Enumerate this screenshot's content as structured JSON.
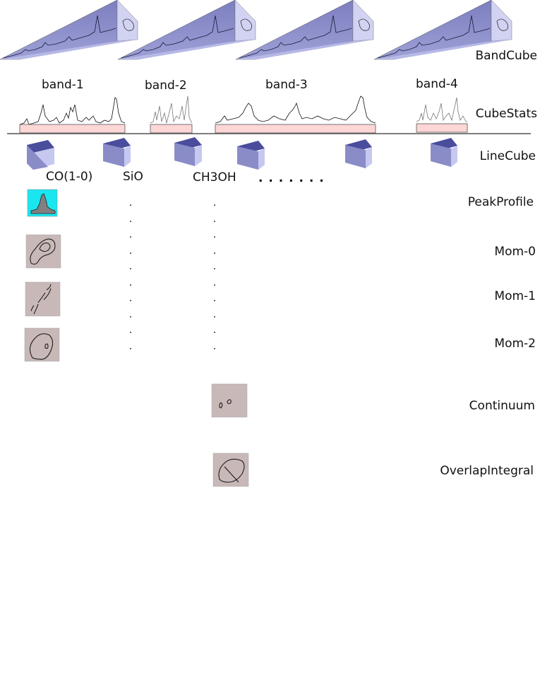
{
  "rows": {
    "bandcube": "BandCube",
    "cubestats": "CubeStats",
    "linecube": "LineCube",
    "peakprofile": "PeakProfile",
    "mom0": "Mom-0",
    "mom1": "Mom-1",
    "mom2": "Mom-2",
    "continuum": "Continuum",
    "overlap": "OverlapIntegral"
  },
  "bands": [
    "band-1",
    "band-2",
    "band-3",
    "band-4"
  ],
  "lines": [
    "CO(1-0)",
    "SiO",
    "CH3OH"
  ],
  "ellipsis": ". . . . . . .",
  "colors": {
    "cube_face": "#8a8cc8",
    "cube_light": "#c6c8f0",
    "cube_top": "#4a4c9c",
    "stats_bar": "#fdd6d6",
    "map_bg": "#c8b8b8",
    "peak_bg": "#1ae6f0"
  },
  "icons": [
    "band-cube-icon",
    "spectrum-icon",
    "line-cube-icon",
    "moment-map-icon",
    "peak-profile-icon"
  ]
}
